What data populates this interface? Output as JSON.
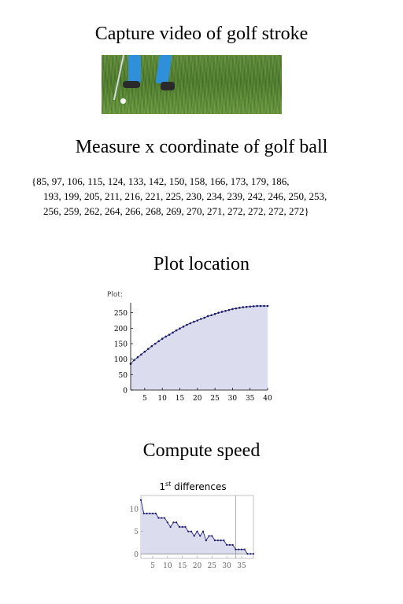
{
  "headings": {
    "capture": "Capture video of golf stroke",
    "measure": "Measure x coordinate of golf ball",
    "plot": "Plot location",
    "speed": "Compute speed"
  },
  "data_lines": [
    "{85, 97, 106, 115, 124, 133, 142, 150, 158, 166, 173, 179, 186,",
    "193, 199, 205, 211, 216, 221, 225, 230, 234, 239, 242, 246, 250, 253,",
    "256, 259, 262, 264, 266, 268, 269, 270, 271, 272, 272, 272, 272}"
  ],
  "colors": {
    "fill": "#dcdcef",
    "line": "#3a3a90",
    "point": "#1a1a60",
    "grass": "#5f8d3a",
    "pants": "#2f8fd8"
  },
  "chart_data": [
    {
      "type": "area",
      "label": "Plot:",
      "x": [
        1,
        2,
        3,
        4,
        5,
        6,
        7,
        8,
        9,
        10,
        11,
        12,
        13,
        14,
        15,
        16,
        17,
        18,
        19,
        20,
        21,
        22,
        23,
        24,
        25,
        26,
        27,
        28,
        29,
        30,
        31,
        32,
        33,
        34,
        35,
        36,
        37,
        38,
        39,
        40
      ],
      "values": [
        85,
        97,
        106,
        115,
        124,
        133,
        142,
        150,
        158,
        166,
        173,
        179,
        186,
        193,
        199,
        205,
        211,
        216,
        221,
        225,
        230,
        234,
        239,
        242,
        246,
        250,
        253,
        256,
        259,
        262,
        264,
        266,
        268,
        269,
        270,
        271,
        272,
        272,
        272,
        272
      ],
      "xlim": [
        1,
        40
      ],
      "ylim": [
        0,
        272
      ],
      "xticks": [
        5,
        10,
        15,
        20,
        25,
        30,
        35,
        40
      ],
      "yticks": [
        0,
        50,
        100,
        150,
        200,
        250
      ],
      "grid": false
    },
    {
      "type": "area",
      "title_prefix": "1",
      "title_sup": "st",
      "title_suffix": " differences",
      "x": [
        1,
        2,
        3,
        4,
        5,
        6,
        7,
        8,
        9,
        10,
        11,
        12,
        13,
        14,
        15,
        16,
        17,
        18,
        19,
        20,
        21,
        22,
        23,
        24,
        25,
        26,
        27,
        28,
        29,
        30,
        31,
        32,
        33,
        34,
        35,
        36,
        37,
        38,
        39
      ],
      "values": [
        12,
        9,
        9,
        9,
        9,
        9,
        8,
        8,
        8,
        7,
        6,
        7,
        7,
        6,
        6,
        6,
        5,
        5,
        4,
        5,
        4,
        5,
        3,
        4,
        4,
        3,
        3,
        3,
        3,
        2,
        2,
        2,
        1,
        1,
        1,
        1,
        0,
        0,
        0
      ],
      "xlim": [
        1,
        39
      ],
      "ylim": [
        -1,
        13
      ],
      "xticks": [
        5,
        10,
        15,
        20,
        25,
        30,
        35
      ],
      "yticks": [
        0,
        5,
        10
      ],
      "marker_x": 33,
      "grid": false
    }
  ]
}
